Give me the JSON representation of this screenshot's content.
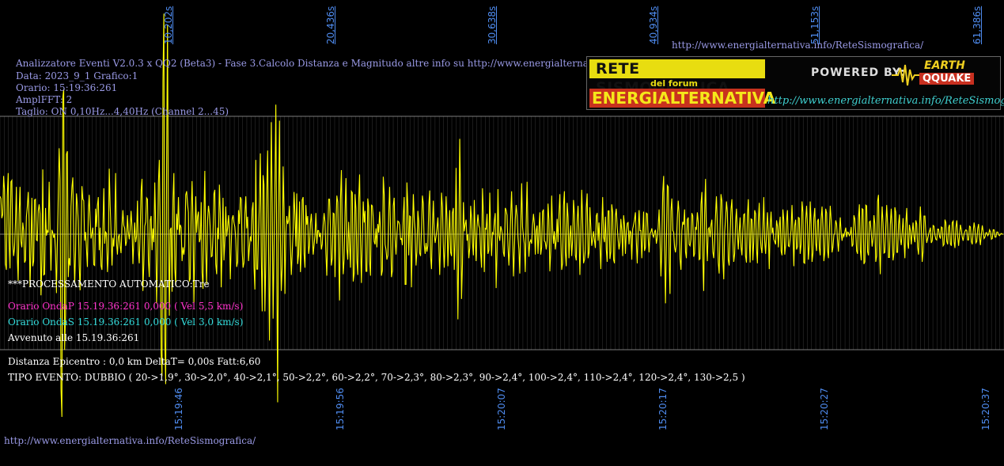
{
  "colors": {
    "trace": "#ffff00",
    "grid": "#7d7d7d",
    "tick_labels": "#4f8cf0",
    "info_text": "#9a9ae6",
    "white": "#ffffff",
    "magenta": "#ff33cc",
    "cyan": "#33dddd"
  },
  "header": {
    "url_top": "http://www.energialternativa.info/ReteSismografica/",
    "lines": [
      "Analizzatore Eventi V2.0.3 x QQ2 (Beta3) - Fase 3.Calcolo Distanza e Magnitudo altre info su http://www.energialternativa.info/ReteSism",
      "Data: 2023_9_1 Grafico:1",
      "Orario: 15:19:36:261",
      "AmplFFT: 2",
      "Taglio: ON 0,10Hz...4,40Hz        (Channel 2...45)"
    ]
  },
  "logo": {
    "title1": "RETE SISMOGRAFICA",
    "subtitle": "del forum",
    "title2": "ENERGIALTERNATIVA",
    "powered": "POWERED BY:",
    "eq1": "EARTH",
    "eq2": "QQUAKE",
    "url": "http://www.energialternativa.info/ReteSismografica"
  },
  "messages": {
    "auto": "***PROCESSAMENTO AUTOMATICO:Tre",
    "onda_p": "Orario OndaP 15.19.36:261  0,000 ( Vel 5,5 km/s)",
    "onda_s": "Orario OndaS 15.19.36:261  0,000 ( Vel 3,0 km/s)",
    "avvenuto": "Avvenuto alle 15.19.36:261",
    "distanza": "Distanza Epicentro : 0,0 km DeltaT= 0,00s  Fatt:6,60",
    "tipo": "TIPO EVENTO: DUBBIO ( 20->1,9°, 30->2,0°, 40->2,1°, 50->2,2°, 60->2,2°, 70->2,3°, 80->2,3°, 90->2,4°, 100->2,4°, 110->2,4°, 120->2,4°, 130->2,5 )"
  },
  "footer": {
    "url": "http://www.energialternativa.info/ReteSismografica/"
  },
  "chart_data": {
    "type": "line",
    "top_ticks": [
      "10,202s",
      "20,436s",
      "30,638s",
      "40,934s",
      "51,153s",
      "61,386s"
    ],
    "bottom_ticks": [
      "15:19:46",
      "15:19:56",
      "15:20:07",
      "15:20:17",
      "15:20:27",
      "15:20:37"
    ],
    "series": [
      {
        "values": [
          0.52,
          0.49,
          0.22,
          0.27,
          0.8,
          0.6,
          -0.41,
          -0.49,
          0.53,
          0.84,
          -0.1,
          -0.47,
          0.72,
          0.74,
          -0.11,
          -0.3,
          -0.19,
          0.17,
          0.65,
          -0.26,
          -0.64,
          0.28,
          0.65,
          -0.1,
          -0.18,
          0.16,
          0.05,
          -0.39,
          -0.36,
          0.24,
          0.38,
          0.58,
          0.19,
          -0.72,
          -0.18,
          0.5,
          -0.44,
          -0.37,
          0.47,
          0.48,
          -0.08,
          -0.09,
          0.32,
          0.41,
          0.28,
          -0.84,
          -0.35,
          0.89,
          -0.56,
          -0.55,
          0.36,
          -0.02,
          0.05,
          0.02,
          0.72,
          0.06,
          -0.5,
          0.06,
          0.02,
          -0.05,
          0.01,
          -0.22,
          -0.81,
          -0.12,
          0.54,
          1.18,
          0.74,
          -2.13,
          -2.51,
          1.88,
          1.99,
          -1.59,
          -1.1,
          1.1,
          1.14,
          -0.59,
          -0.33,
          -0.43,
          0.38,
          0.64,
          0.78,
          -0.08,
          -0.68,
          -0.26,
          0.56,
          0.41,
          0.18,
          -0.43,
          -0.77,
          -0.07,
          0.66,
          0.48,
          0.46,
          -0.09,
          0.03,
          -0.2,
          -0.45,
          0.28,
          0.54,
          0.2,
          -0.06,
          0.01,
          0.09,
          -0.42,
          -0.43,
          0.35,
          0.1,
          0.39,
          0.51,
          -0.22,
          0.09,
          -0.43,
          -0.49,
          0.06,
          0.63,
          -0.13,
          0.03,
          0.01,
          -0.52,
          -0.24,
          0.9,
          0.4,
          0.03,
          -0.43,
          -0.05,
          -0.17,
          0.08,
          0.84,
          -0.12,
          -0.28,
          -0.04,
          0.0,
          -0.16,
          -0.26,
          0.11,
          0.33,
          0.12,
          0.08,
          -0.16,
          -0.1,
          0.26,
          0.03,
          -0.07,
          0.06,
          0.32,
          0.1,
          -0.41,
          -0.09,
          0.16,
          -0.11,
          -0.03,
          0.46,
          -0.22,
          -0.4,
          0.02,
          0.6,
          0.76,
          -0.78,
          -0.41,
          0.11,
          0.17,
          0.5,
          0.48,
          -0.36,
          -0.59,
          0.19,
          0.25,
          -0.22,
          0.08,
          -0.11,
          0.71,
          0.14,
          -0.95,
          -0.37,
          0.7,
          1.02,
          0.12,
          -1.63,
          -1.95,
          2.1,
          3.03,
          -1.44,
          -2.06,
          0.93,
          2.88,
          0.12,
          -1.12,
          0.06,
          0.09,
          -0.79,
          0.47,
          0.84,
          -0.47,
          -0.71,
          0.28,
          0.06,
          0.51,
          -0.01,
          0.13,
          0.09,
          -0.37,
          -0.18,
          -0.28,
          -0.17,
          0.54,
          0.59,
          0.41,
          0.3,
          -0.65,
          -0.61,
          0.26,
          0.73,
          0.2,
          -0.94,
          -0.16,
          0.52,
          0.02,
          0.24,
          0.31,
          -0.11,
          -0.06,
          0.44,
          -0.53,
          -0.75,
          0.25,
          0.87,
          -0.22,
          -0.69,
          0.18,
          0.39,
          0.29,
          0.07,
          -0.31,
          -0.3,
          -0.01,
          0.55,
          0.61,
          -0.41,
          -0.55,
          0.09,
          -0.07,
          0.68,
          0.29,
          -0.73,
          -0.21,
          0.5,
          -0.36,
          -0.08,
          0.38,
          -0.03,
          0.09,
          0.26,
          0.03,
          -0.62,
          -0.14,
          0.21,
          0.26,
          0.16,
          0.1,
          -0.07,
          -0.45,
          -0.38,
          0.33,
          0.14,
          0.51,
          0.48,
          -0.23,
          -0.46,
          -0.39,
          0.28,
          0.52,
          0.08,
          0.24,
          -0.37,
          -0.18,
          -0.03,
          -0.1,
          0.33,
          0.44,
          -0.45,
          -0.76,
          1.02,
          -0.48,
          -0.48,
          0.03,
          0.44,
          1.11,
          -0.3,
          -1.06,
          0.81,
          0.68,
          -1.06,
          -0.36,
          0.59,
          1.15,
          -0.19,
          -1.46,
          -0.12,
          1.54,
          0.48,
          -1.16,
          -0.25,
          0.71,
          1.78,
          -0.24,
          -2.31,
          0.36,
          1.56,
          -0.05,
          -0.78,
          -0.45,
          0.93,
          0.33,
          -0.82,
          0.0,
          0.25,
          0.14,
          0.19,
          0.39,
          -0.16,
          -0.56,
          -0.25,
          0.05,
          0.58,
          0.26,
          -0.17,
          0.56,
          -0.41,
          -0.28,
          0.45,
          -0.52,
          -0.26,
          0.47,
          0.51,
          -0.27,
          -0.46,
          0.4,
          0.13,
          0.25,
          -0.27,
          -0.16,
          0.15,
          0.28,
          0.04,
          -0.28,
          -0.15,
          -0.01,
          0.29,
          -0.13,
          0.05,
          0.05,
          -0.04,
          0.02,
          -0.21,
          -0.14,
          0.13,
          0.29,
          0.17,
          -0.27,
          -0.57,
          0.01,
          0.48,
          0.48,
          0.09,
          -0.43,
          -0.33,
          0.29,
          0.28,
          -0.59,
          0.1,
          0.53,
          0.44,
          -0.31,
          -0.91,
          0.48,
          0.88,
          -0.07,
          -0.55,
          -0.35,
          0.3,
          0.77,
          -0.2,
          -0.35,
          0.17,
          -0.14,
          -0.46,
          0.59,
          0.57,
          -0.65,
          -0.54,
          0.55,
          0.35,
          -0.35,
          -0.56,
          0.46,
          0.82,
          -0.1,
          -0.67,
          -0.09,
          0.45,
          0.16,
          0.32,
          -0.51,
          -0.51,
          0.49,
          0.37,
          -0.37,
          -0.57,
          0.4,
          0.39,
          0.23,
          -0.1,
          -0.14,
          0.08,
          -0.18,
          0.14,
          0.02,
          0.31,
          0.05,
          -0.57,
          -0.5,
          0.79,
          0.54,
          -0.14,
          -0.21,
          -0.35,
          -0.29,
          0.28,
          0.65,
          0.06,
          -0.59,
          -0.5,
          0.39,
          0.5,
          -0.07,
          -0.28,
          0.0,
          0.18,
          0.17,
          0.13,
          -0.07,
          -0.06,
          -0.15,
          0.26,
          0.51,
          -0.69,
          -0.69,
          0.71,
          0.39,
          -0.29,
          0.25,
          0.24,
          -0.73,
          -0.04,
          0.55,
          0.22,
          0.06,
          -0.43,
          -0.23,
          0.32,
          0.18,
          -0.26,
          -0.3,
          0.06,
          0.53,
          0.42,
          -0.14,
          -0.27,
          -0.12,
          -0.24,
          -0.16,
          0.39,
          0.6,
          -0.31,
          -0.48,
          0.1,
          0.46,
          0.0,
          -0.12,
          -0.03,
          0.08,
          0.23,
          -0.13,
          -0.56,
          -0.09,
          0.57,
          0.37,
          -0.17,
          -0.46,
          -0.09,
          0.52,
          0.19,
          -0.44,
          0.02,
          0.33,
          -0.25,
          -0.3,
          0.29,
          0.36,
          -0.49,
          -0.06,
          0.91,
          -0.08,
          -1.17,
          -0.12,
          1.31,
          0.5,
          -0.89,
          -0.41,
          0.44,
          0.04,
          0.13,
          0.2,
          -0.09,
          0.0,
          -0.33,
          -0.19,
          0.39,
          0.21,
          -0.12,
          -0.29,
          0.47,
          -0.03,
          -0.37,
          0.11,
          0.27,
          0.12,
          0.08,
          -0.26,
          -0.46,
          0.63,
          0.29,
          -0.52,
          0.08,
          0.07,
          0.28,
          -0.27,
          -0.22,
          0.57,
          0.04,
          -0.3,
          0.02,
          0.0,
          0.17,
          0.29,
          -0.74,
          -0.22,
          0.62,
          -0.02,
          -0.09,
          0.11,
          0.06,
          -0.01,
          -0.25,
          -0.31,
          0.36,
          0.33,
          0.26,
          -0.16,
          -0.43,
          -0.13,
          0.24,
          0.59,
          0.05,
          -0.58,
          -0.24,
          0.2,
          0.4,
          0.26,
          -0.05,
          -0.21,
          -0.54,
          0.1,
          0.7,
          0.1,
          -0.03,
          -0.14,
          -0.52,
          0.17,
          0.72,
          0.02,
          -0.31,
          -0.11,
          -0.08,
          -0.13,
          0.11,
          0.28,
          0.14,
          -0.28,
          0.05,
          0.12,
          -0.27,
          0.06,
          0.3,
          -0.28,
          -0.18,
          0.31,
          0.34,
          -0.09,
          -0.11,
          -0.21,
          -0.09,
          0.42,
          0.19,
          -0.51,
          -0.23,
          0.53,
          0.09,
          -0.13,
          0.04,
          -0.21,
          -0.09,
          0.21,
          -0.11,
          0.28,
          0.55,
          -0.03,
          -0.49,
          -0.4,
          0.39,
          0.59,
          -0.25,
          -0.44,
          0.43,
          0.23,
          -0.33,
          -0.04,
          0.12,
          -0.3,
          -0.08,
          0.47,
          0.27,
          -0.29,
          -0.36,
          0.19,
          0.39,
          0.01,
          -0.56,
          0.01,
          0.61,
          0.2,
          -0.4,
          -0.35,
          -0.21,
          0.36,
          0.56,
          -0.33,
          -0.25,
          0.37,
          0.1,
          -0.16,
          -0.07,
          0.04,
          -0.08,
          -0.19,
          0.25,
          0.29,
          -0.09,
          0.16,
          -0.15,
          -0.48,
          0.08,
          0.51,
          -0.04,
          -0.11,
          0.24,
          -0.21,
          -0.38,
          0.32,
          0.32,
          -0.34,
          -0.24,
          0.41,
          0.3,
          -0.35,
          -0.4,
          0.25,
          0.35,
          0.1,
          -0.08,
          -0.21,
          -0.12,
          0.21,
          0.05,
          -0.3,
          0.26,
          0.13,
          -0.27,
          0.04,
          0.15,
          0.16,
          -0.14,
          0.05,
          0.02,
          -0.35,
          0.07,
          0.13,
          0.2,
          0.3,
          -0.1,
          -0.4,
          0.02,
          0.33,
          0.05,
          0.05,
          -0.33,
          -0.01,
          0.31,
          -0.23,
          -0.18,
          0.29,
          0.28,
          -0.05,
          -0.25,
          0.01,
          0.03,
          0.08,
          -0.01,
          -0.04,
          0.03,
          0.06,
          -0.13,
          -0.05,
          0.09,
          0.34,
          -0.06,
          -0.58,
          -0.23,
          0.57,
          0.8,
          -0.19,
          -0.95,
          -0.14,
          0.67,
          0.65,
          -0.33,
          -0.82,
          0.32,
          0.49,
          0.05,
          0.03,
          -0.18,
          -0.25,
          -0.13,
          0.22,
          0.46,
          0.28,
          -0.34,
          -0.49,
          0.05,
          0.17,
          0.13,
          0.34,
          -0.24,
          -0.33,
          0.2,
          0.23,
          -0.14,
          -0.16,
          -0.07,
          0.29,
          0.25,
          -0.31,
          -0.27,
          0.1,
          0.06,
          0.3,
          0.16,
          -0.35,
          -0.34,
          0.41,
          0.58,
          -0.31,
          -0.78,
          0.27,
          0.76,
          -0.07,
          -0.37,
          0.07,
          0.09,
          -0.04,
          0.13,
          0.2,
          -0.24,
          -0.33,
          -0.08,
          0.26,
          0.52,
          0.12,
          -0.39,
          -0.54,
          0.05,
          0.55,
          0.46,
          -0.34,
          -0.62,
          0.03,
          0.21,
          0.45,
          0.3,
          -0.35,
          -0.43,
          0.0,
          0.34,
          0.48,
          -0.04,
          -0.38,
          -0.27,
          0.17,
          0.35,
          0.01,
          -0.21,
          0.04,
          0.23,
          -0.17,
          -0.29,
          0.05,
          0.27,
          0.28,
          -0.3,
          -0.39,
          0.25,
          0.48,
          -0.03,
          -0.39,
          0.21,
          0.2,
          -0.36,
          -0.1,
          0.33,
          0.28,
          -0.2,
          -0.4,
          0.17,
          0.43,
          -0.02,
          -0.18,
          -0.26,
          0.09,
          0.51,
          -0.1,
          -0.27,
          -0.01,
          0.3,
          0.03,
          -0.48,
          0.09,
          0.31,
          0.01,
          0.09,
          -0.07,
          -0.1,
          -0.14,
          0.19,
          0.11,
          -0.18,
          0.11,
          0.24,
          -0.23,
          -0.29,
          0.34,
          0.19,
          -0.28,
          -0.15,
          0.17,
          0.33,
          -0.16,
          -0.17,
          -0.06,
          0.06,
          0.4,
          0.03,
          -0.44,
          0.12,
          0.2,
          -0.21,
          -0.17,
          0.23,
          0.22,
          -0.27,
          -0.14,
          0.45,
          0.3,
          -0.39,
          -0.4,
          0.19,
          0.39,
          0.12,
          -0.35,
          -0.15,
          0.45,
          0.14,
          -0.38,
          -0.26,
          0.22,
          0.36,
          -0.12,
          -0.23,
          0.18,
          0.21,
          -0.19,
          -0.29,
          0.2,
          0.38,
          0.09,
          -0.37,
          -0.25,
          0.35,
          0.29,
          -0.22,
          -0.33,
          0.04,
          0.39,
          0.2,
          -0.25,
          -0.18,
          -0.01,
          0.01,
          0.19,
          0.14,
          -0.08,
          -0.24,
          0.01,
          0.23,
          0.02,
          -0.09,
          0.01,
          -0.03,
          0.03,
          0.09,
          -0.04,
          0.03,
          0.02,
          -0.02,
          0.0,
          0.1,
          -0.17,
          -0.14,
          0.26,
          0.21,
          0.02,
          -0.23,
          -0.27,
          0.21,
          0.41,
          -0.21,
          -0.36,
          0.35,
          0.34,
          -0.41,
          -0.38,
          0.4,
          0.39,
          -0.24,
          -0.29,
          0.17,
          0.18,
          0.03,
          -0.17,
          -0.06,
          0.26,
          0.14,
          -0.38,
          -0.3,
          0.45,
          0.54,
          -0.17,
          -0.55,
          0.02,
          0.38,
          0.15,
          -0.26,
          -0.25,
          0.1,
          0.4,
          0.15,
          -0.32,
          -0.32,
          0.13,
          0.35,
          0.12,
          -0.36,
          -0.26,
          0.37,
          0.3,
          -0.25,
          -0.25,
          0.13,
          0.27,
          -0.06,
          -0.15,
          0.02,
          0.22,
          -0.06,
          -0.33,
          0.15,
          0.36,
          -0.12,
          -0.2,
          0.13,
          0.05,
          -0.14,
          0.02,
          0.16,
          -0.04,
          -0.11,
          0.19,
          0.14,
          -0.18,
          -0.28,
          0.09,
          0.38,
          0.1,
          -0.38,
          -0.24,
          0.25,
          0.25,
          0.02,
          -0.12,
          -0.06,
          0.0,
          0.04,
          0.09,
          -0.12,
          -0.09,
          0.12,
          0.11,
          -0.01,
          -0.07,
          -0.08,
          0.07,
          0.07,
          -0.03,
          -0.06,
          0.1,
          0.09,
          -0.16,
          -0.14,
          0.2,
          0.16,
          -0.1,
          -0.14,
          0.09,
          0.13,
          -0.13,
          -0.16,
          0.16,
          0.18,
          -0.1,
          -0.19,
          0.09,
          0.19,
          -0.04,
          -0.16,
          -0.01,
          0.13,
          0.06,
          -0.04,
          -0.09,
          0.0,
          0.04,
          0.06,
          0.05,
          -0.08,
          -0.08,
          0.11,
          0.1,
          -0.1,
          -0.14,
          0.03,
          0.16,
          0.07,
          -0.12,
          -0.1,
          0.08,
          0.14,
          -0.04,
          -0.15,
          0.0,
          0.12,
          0.04,
          -0.06,
          -0.04,
          0.02,
          0.02,
          -0.02,
          0.0,
          0.06,
          0.03,
          -0.07,
          -0.06,
          0.06,
          0.06,
          -0.04,
          -0.04,
          0.03,
          0.03,
          -0.01,
          -0.02,
          0.0,
          0.01,
          0.0,
          0.0
        ]
      }
    ]
  }
}
